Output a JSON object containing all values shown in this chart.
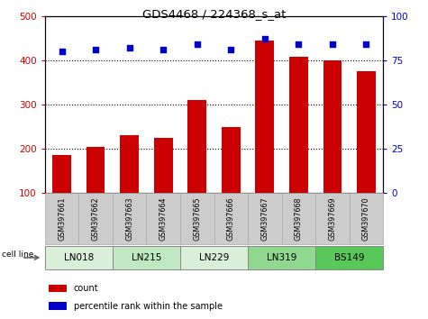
{
  "title": "GDS4468 / 224368_s_at",
  "samples": [
    "GSM397661",
    "GSM397662",
    "GSM397663",
    "GSM397664",
    "GSM397665",
    "GSM397666",
    "GSM397667",
    "GSM397668",
    "GSM397669",
    "GSM397670"
  ],
  "counts": [
    185,
    205,
    230,
    225,
    310,
    248,
    445,
    408,
    400,
    375
  ],
  "percentile_ranks": [
    80,
    81,
    82,
    81,
    84,
    81,
    87,
    84,
    84,
    84
  ],
  "cell_lines": [
    {
      "label": "LN018",
      "start": 0,
      "end": 2,
      "color": "#d8f0d8"
    },
    {
      "label": "LN215",
      "start": 2,
      "end": 4,
      "color": "#c0e8c0"
    },
    {
      "label": "LN229",
      "start": 4,
      "end": 6,
      "color": "#d8f0d8"
    },
    {
      "label": "LN319",
      "start": 6,
      "end": 8,
      "color": "#90d890"
    },
    {
      "label": "BS149",
      "start": 8,
      "end": 10,
      "color": "#58c858"
    }
  ],
  "bar_color": "#cc0000",
  "dot_color": "#0000cc",
  "left_ylim": [
    100,
    500
  ],
  "left_yticks": [
    100,
    200,
    300,
    400,
    500
  ],
  "right_ylim": [
    0,
    100
  ],
  "right_yticks": [
    0,
    25,
    50,
    75,
    100
  ],
  "grid_values": [
    200,
    300,
    400
  ],
  "bar_width": 0.55,
  "sample_bg_color": "#cccccc",
  "sample_border_color": "#aaaaaa"
}
